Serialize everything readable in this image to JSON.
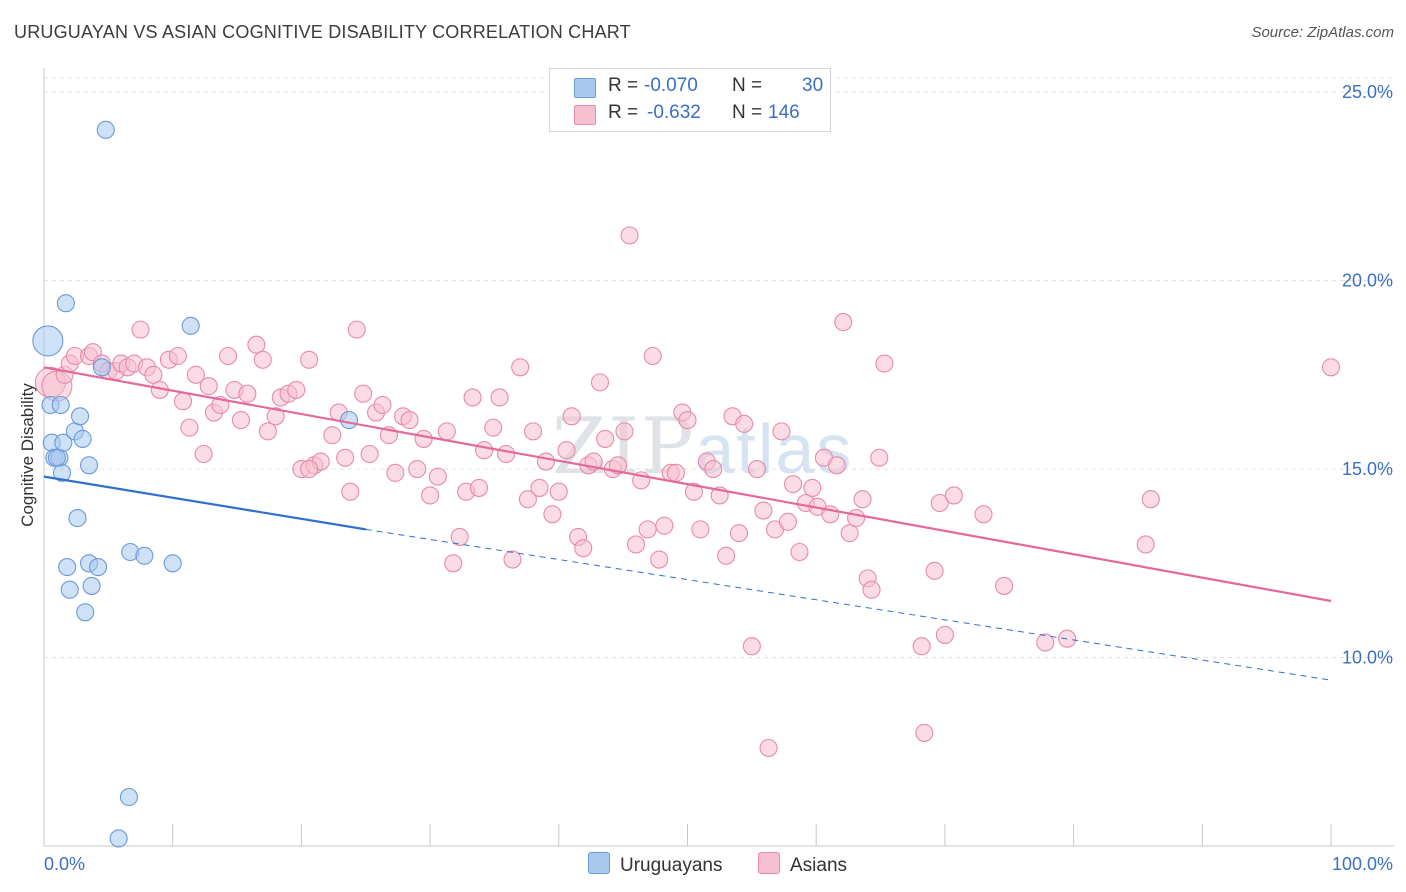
{
  "title": "URUGUAYAN VS ASIAN COGNITIVE DISABILITY CORRELATION CHART",
  "source": "Source: ZipAtlas.com",
  "watermark": {
    "zip": "ZIP",
    "atlas": "atlas"
  },
  "legend": {
    "uruguayans": {
      "r_label": "R =",
      "r_value": "-0.070",
      "n_label": "N =",
      "n_value": "30"
    },
    "asians": {
      "r_label": "R =",
      "r_value": "-0.632",
      "n_label": "N =",
      "n_value": "146"
    }
  },
  "bottom_legend": {
    "uruguayans": "Uruguayans",
    "asians": "Asians"
  },
  "colors": {
    "uruguayan_fill": "#a8c8f0",
    "uruguayan_stroke": "#6a9ad8",
    "uruguayan_line": "#2f6fd0",
    "asian_fill": "#f7c0d0",
    "asian_stroke": "#e88aaa",
    "asian_line": "#e4699a",
    "tick_label": "#3a6fc4",
    "grid": "#e0e0e0"
  },
  "chart_data": {
    "type": "scatter",
    "title": "URUGUAYAN VS ASIAN COGNITIVE DISABILITY CORRELATION CHART",
    "xlabel": "",
    "ylabel": "Cognitive Disability",
    "xlim": [
      0,
      100
    ],
    "ylim": [
      5.0,
      25.8
    ],
    "x_tick_labels": [
      "0.0%",
      "100.0%"
    ],
    "y_ticks": [
      10,
      15,
      20,
      25
    ],
    "y_tick_labels": [
      "10.0%",
      "15.0%",
      "20.0%",
      "25.0%"
    ],
    "grid": true,
    "series": [
      {
        "name": "Uruguayans",
        "points": [
          [
            0.3,
            18.4
          ],
          [
            0.5,
            16.7
          ],
          [
            0.6,
            15.7
          ],
          [
            0.8,
            15.3
          ],
          [
            1.2,
            15.3
          ],
          [
            1.3,
            16.7
          ],
          [
            1.4,
            14.9
          ],
          [
            1.5,
            15.7
          ],
          [
            1.7,
            19.4
          ],
          [
            1.8,
            12.4
          ],
          [
            2.0,
            11.8
          ],
          [
            2.4,
            16.0
          ],
          [
            2.6,
            13.7
          ],
          [
            2.8,
            16.4
          ],
          [
            3.0,
            15.8
          ],
          [
            3.2,
            11.2
          ],
          [
            3.5,
            15.1
          ],
          [
            3.5,
            12.5
          ],
          [
            3.7,
            11.9
          ],
          [
            4.2,
            12.4
          ],
          [
            4.5,
            17.7
          ],
          [
            4.8,
            24.0
          ],
          [
            5.8,
            5.2
          ],
          [
            6.6,
            6.3
          ],
          [
            6.7,
            12.8
          ],
          [
            7.8,
            12.7
          ],
          [
            10.0,
            12.5
          ],
          [
            11.4,
            18.8
          ],
          [
            23.7,
            16.3
          ],
          [
            1.0,
            15.3
          ]
        ],
        "trend": {
          "x": [
            0,
            25,
            100
          ],
          "y": [
            14.8,
            13.4,
            9.4
          ],
          "solid_until_x": 25
        }
      },
      {
        "name": "Asians",
        "points": [
          [
            0.5,
            17.3
          ],
          [
            1.0,
            17.2
          ],
          [
            1.6,
            17.5
          ],
          [
            2.0,
            17.8
          ],
          [
            2.4,
            18.0
          ],
          [
            3.5,
            18.0
          ],
          [
            3.8,
            18.1
          ],
          [
            4.5,
            17.8
          ],
          [
            5.0,
            17.6
          ],
          [
            5.6,
            17.6
          ],
          [
            6.0,
            17.8
          ],
          [
            6.5,
            17.7
          ],
          [
            7.0,
            17.8
          ],
          [
            7.5,
            18.7
          ],
          [
            8.0,
            17.7
          ],
          [
            8.5,
            17.5
          ],
          [
            9.0,
            17.1
          ],
          [
            9.7,
            17.9
          ],
          [
            10.4,
            18.0
          ],
          [
            10.8,
            16.8
          ],
          [
            11.3,
            16.1
          ],
          [
            11.8,
            17.5
          ],
          [
            12.4,
            15.4
          ],
          [
            12.8,
            17.2
          ],
          [
            13.2,
            16.5
          ],
          [
            13.7,
            16.7
          ],
          [
            14.3,
            18.0
          ],
          [
            14.8,
            17.1
          ],
          [
            15.3,
            16.3
          ],
          [
            15.8,
            17.0
          ],
          [
            16.5,
            18.3
          ],
          [
            17.0,
            17.9
          ],
          [
            17.4,
            16.0
          ],
          [
            18.0,
            16.4
          ],
          [
            18.4,
            16.9
          ],
          [
            19.0,
            17.0
          ],
          [
            19.6,
            17.1
          ],
          [
            20.0,
            15.0
          ],
          [
            20.6,
            17.9
          ],
          [
            21.0,
            15.1
          ],
          [
            21.5,
            15.2
          ],
          [
            22.4,
            15.9
          ],
          [
            22.9,
            16.5
          ],
          [
            23.4,
            15.3
          ],
          [
            23.8,
            14.4
          ],
          [
            24.3,
            18.7
          ],
          [
            24.8,
            17.0
          ],
          [
            25.3,
            15.4
          ],
          [
            25.8,
            16.5
          ],
          [
            26.3,
            16.7
          ],
          [
            26.8,
            15.9
          ],
          [
            27.3,
            14.9
          ],
          [
            27.9,
            16.4
          ],
          [
            28.4,
            16.3
          ],
          [
            29.0,
            15.0
          ],
          [
            29.5,
            15.8
          ],
          [
            30.0,
            14.3
          ],
          [
            30.6,
            14.8
          ],
          [
            31.3,
            16.0
          ],
          [
            31.8,
            12.5
          ],
          [
            32.3,
            13.2
          ],
          [
            32.8,
            14.4
          ],
          [
            33.3,
            16.9
          ],
          [
            33.8,
            14.5
          ],
          [
            34.2,
            15.5
          ],
          [
            34.9,
            16.1
          ],
          [
            35.4,
            16.9
          ],
          [
            35.9,
            15.4
          ],
          [
            36.4,
            12.6
          ],
          [
            37.0,
            17.7
          ],
          [
            37.6,
            14.2
          ],
          [
            38.0,
            16.0
          ],
          [
            38.5,
            14.5
          ],
          [
            39.0,
            15.2
          ],
          [
            39.5,
            13.8
          ],
          [
            40.0,
            14.4
          ],
          [
            40.6,
            15.5
          ],
          [
            41.0,
            16.4
          ],
          [
            41.5,
            13.2
          ],
          [
            41.9,
            12.9
          ],
          [
            42.3,
            15.1
          ],
          [
            42.7,
            15.2
          ],
          [
            43.2,
            17.3
          ],
          [
            43.6,
            15.8
          ],
          [
            44.2,
            15.0
          ],
          [
            44.6,
            15.1
          ],
          [
            45.1,
            16.0
          ],
          [
            45.5,
            21.2
          ],
          [
            46.0,
            13.0
          ],
          [
            46.4,
            14.7
          ],
          [
            46.9,
            13.4
          ],
          [
            47.3,
            18.0
          ],
          [
            47.8,
            12.6
          ],
          [
            48.2,
            13.5
          ],
          [
            48.7,
            14.9
          ],
          [
            49.1,
            14.9
          ],
          [
            49.6,
            16.5
          ],
          [
            50.0,
            16.3
          ],
          [
            50.5,
            14.4
          ],
          [
            51.0,
            13.4
          ],
          [
            51.5,
            15.2
          ],
          [
            52.0,
            15.0
          ],
          [
            52.5,
            14.3
          ],
          [
            53.0,
            12.7
          ],
          [
            53.5,
            16.4
          ],
          [
            54.0,
            13.3
          ],
          [
            54.4,
            16.2
          ],
          [
            55.0,
            10.3
          ],
          [
            55.4,
            15.0
          ],
          [
            55.9,
            13.9
          ],
          [
            56.3,
            7.6
          ],
          [
            56.8,
            13.4
          ],
          [
            57.3,
            16.0
          ],
          [
            57.8,
            13.6
          ],
          [
            58.2,
            14.6
          ],
          [
            58.7,
            12.8
          ],
          [
            59.2,
            14.1
          ],
          [
            59.7,
            14.5
          ],
          [
            60.1,
            14.0
          ],
          [
            60.6,
            15.3
          ],
          [
            61.1,
            13.8
          ],
          [
            61.6,
            15.1
          ],
          [
            62.1,
            18.9
          ],
          [
            62.6,
            13.3
          ],
          [
            63.1,
            13.7
          ],
          [
            63.6,
            14.2
          ],
          [
            64.0,
            12.1
          ],
          [
            64.3,
            11.8
          ],
          [
            64.9,
            15.3
          ],
          [
            65.3,
            17.8
          ],
          [
            68.2,
            10.3
          ],
          [
            68.4,
            8.0
          ],
          [
            69.2,
            12.3
          ],
          [
            69.6,
            14.1
          ],
          [
            70.0,
            10.6
          ],
          [
            70.7,
            14.3
          ],
          [
            73.0,
            13.8
          ],
          [
            74.6,
            11.9
          ],
          [
            77.8,
            10.4
          ],
          [
            79.5,
            10.5
          ],
          [
            85.6,
            13.0
          ],
          [
            86.0,
            14.2
          ],
          [
            100.0,
            17.7
          ],
          [
            20.6,
            15.0
          ]
        ],
        "trend": {
          "x": [
            0,
            100
          ],
          "y": [
            17.7,
            11.5
          ]
        }
      }
    ]
  }
}
